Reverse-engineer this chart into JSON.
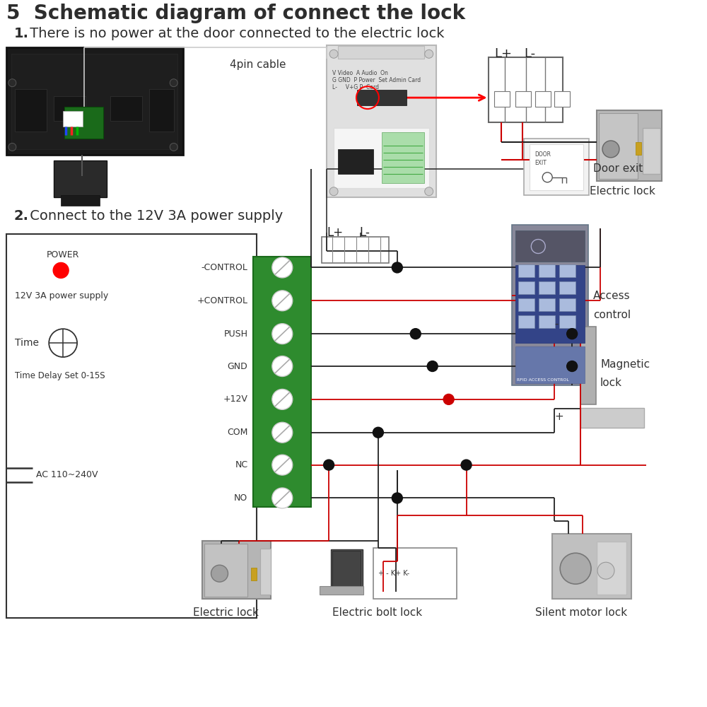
{
  "title": "5  Schematic diagram of connect the lock",
  "subtitle1_bold": "1.",
  "subtitle1_rest": " There is no power at the door connected to the electric lock",
  "subtitle2_bold": "2.",
  "subtitle2_rest": " Connect to the 12V 3A power supply",
  "bg_color": "#ffffff",
  "title_fontsize": 20,
  "sub_fontsize": 14,
  "label_fontsize": 11,
  "small_fontsize": 9,
  "tiny_fontsize": 7,
  "label_4pin": "4pin cable",
  "label_electric_lock1": "Electric lock",
  "label_lplus": "L+",
  "label_lminus": "L-",
  "label_door_exit": "Door exit",
  "label_access_control_1": "Access",
  "label_access_control_2": "control",
  "label_magnetic_lock_1": "Magnetic",
  "label_magnetic_lock_2": "lock",
  "label_electric_bolt": "Electric bolt lock",
  "label_electric_lock2": "Electric lock",
  "label_silent_motor": "Silent motor lock",
  "terminals": [
    "-CONTROL",
    "+CONTROL",
    "PUSH",
    "GND",
    "+12V",
    "COM",
    "NC",
    "NO"
  ],
  "power_label1": "POWER",
  "power_label2": "12V 3A power supply",
  "time_label": "Time",
  "time_delay_label": "Time Delay Set 0-15S",
  "ac_label": "AC 110~240V",
  "terminal_minus": "-",
  "terminal_plus": "+",
  "door_exit_line1": "DOOR",
  "door_exit_line2": "EXIT",
  "bolt_terminals": "+ - K+ K-"
}
